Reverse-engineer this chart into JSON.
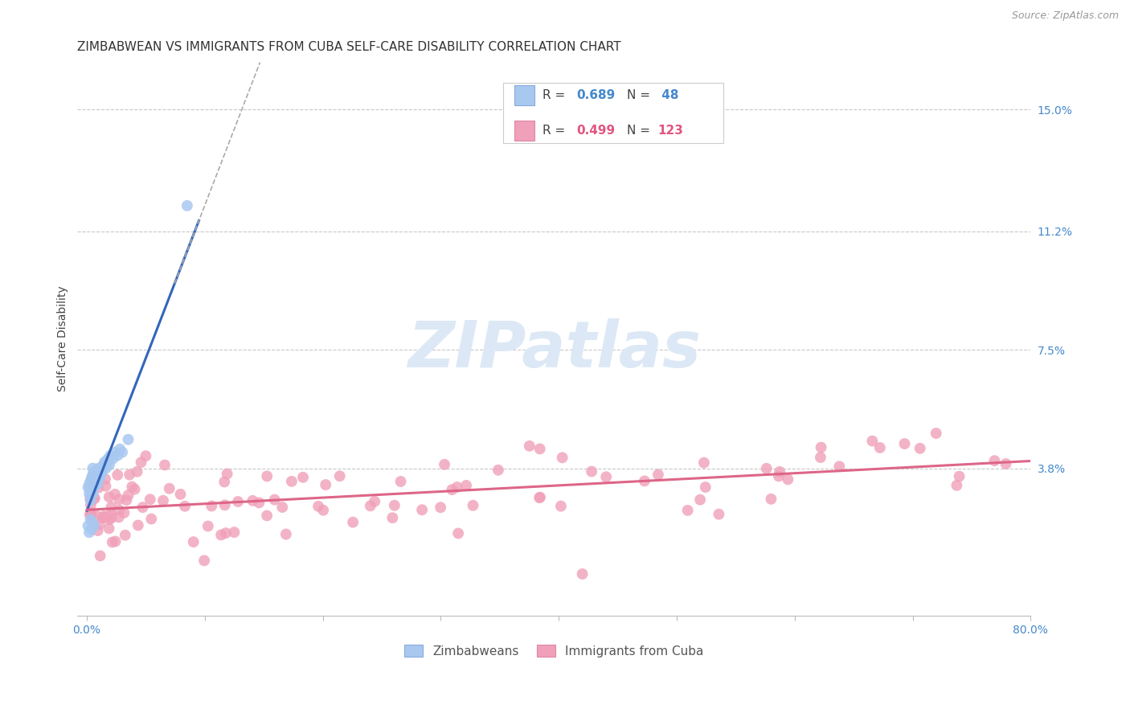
{
  "title": "ZIMBABWEAN VS IMMIGRANTS FROM CUBA SELF-CARE DISABILITY CORRELATION CHART",
  "source": "Source: ZipAtlas.com",
  "ylabel": "Self-Care Disability",
  "ytick_labels": [
    "15.0%",
    "11.2%",
    "7.5%",
    "3.8%"
  ],
  "ytick_values": [
    0.15,
    0.112,
    0.075,
    0.038
  ],
  "xlim": [
    -0.008,
    0.8
  ],
  "ylim": [
    -0.008,
    0.165
  ],
  "background_color": "#ffffff",
  "grid_color": "#c8c8c8",
  "watermark_color": "#dce8f5",
  "zimbabwean_color": "#a8c8f0",
  "cuba_color": "#f0a0b8",
  "reg_line_blue": "#3366bb",
  "reg_line_pink": "#dd6688",
  "title_fontsize": 11,
  "source_fontsize": 9,
  "axis_label_fontsize": 10,
  "tick_fontsize": 10,
  "legend_fontsize": 11
}
